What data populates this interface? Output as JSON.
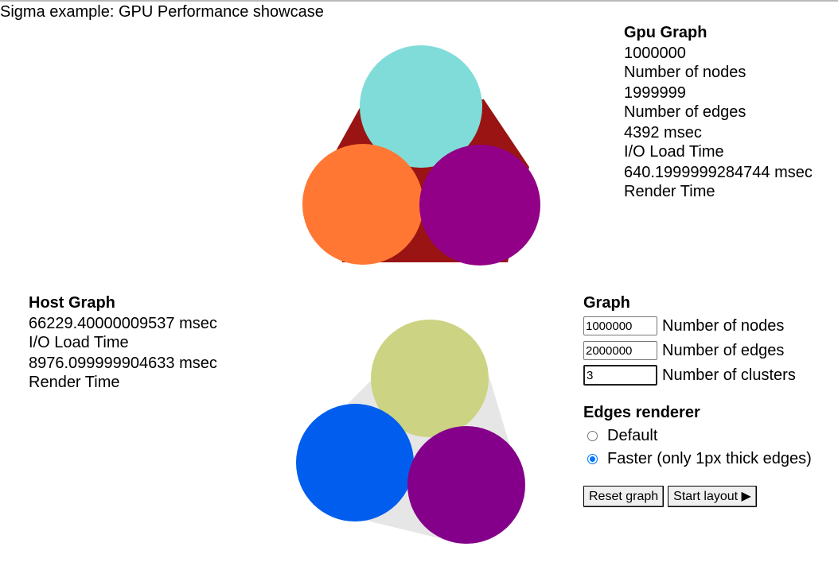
{
  "page": {
    "title": "Sigma example: GPU Performance showcase"
  },
  "gpu": {
    "heading": "Gpu Graph",
    "stats": [
      {
        "value": "1000000",
        "label": "Number of nodes"
      },
      {
        "value": "1999999",
        "label": "Number of edges"
      },
      {
        "value": "4392 msec",
        "label": "I/O Load Time"
      },
      {
        "value": "640.1999999284744 msec",
        "label": "Render Time"
      }
    ],
    "colors": {
      "edges": "#9a1414",
      "cluster_top": "#80dcd8",
      "cluster_left": "#ff7733",
      "cluster_right": "#920087"
    }
  },
  "host": {
    "heading": "Host Graph",
    "stats": [
      {
        "value": "66229.40000009537 msec",
        "label": "I/O Load Time"
      },
      {
        "value": "8976.099999904633 msec",
        "label": "Render Time"
      }
    ],
    "colors": {
      "edges": "#e6e6e6",
      "cluster_top": "#ccd382",
      "cluster_left": "#005ded",
      "cluster_right": "#84008a"
    }
  },
  "controls": {
    "heading": "Graph",
    "fields": [
      {
        "value": "1000000",
        "label": "Number of nodes"
      },
      {
        "value": "2000000",
        "label": "Number of edges"
      },
      {
        "value": "3",
        "label": "Number of clusters"
      }
    ],
    "renderer_heading": "Edges renderer",
    "renderer_options": [
      {
        "label": "Default",
        "checked": false
      },
      {
        "label": "Faster (only 1px thick edges)",
        "checked": true
      }
    ],
    "reset_label": "Reset graph",
    "layout_label": "Start layout ▶"
  }
}
